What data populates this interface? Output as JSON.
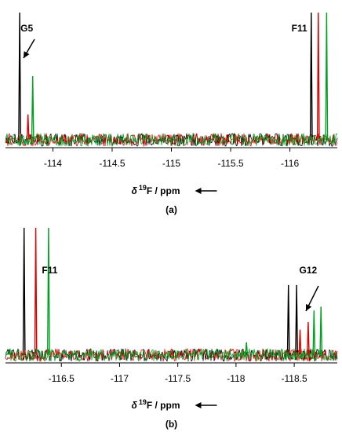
{
  "chart_data": [
    {
      "type": "line",
      "panel_label": "(a)",
      "xaxis": {
        "label_symbol": "δ",
        "label_sup": "19",
        "label_rest": "F / ppm",
        "reversed": true,
        "range": [
          -113.6,
          -116.4
        ],
        "ticks": [
          -114,
          -114.5,
          -115,
          -115.5,
          -116
        ],
        "tick_labels": [
          "-114",
          "-114.5",
          "-115",
          "-115.5",
          "-116"
        ]
      },
      "annotations": [
        {
          "text": "G5",
          "x": -113.78
        },
        {
          "text": "F11",
          "x": -116.08
        }
      ],
      "noise_amplitude": 0.05,
      "series": [
        {
          "color": "#000000",
          "peaks": [
            {
              "x": -113.72,
              "height": 1.0
            },
            {
              "x": -116.18,
              "height": 1.0
            }
          ]
        },
        {
          "color": "#dd0000",
          "peaks": [
            {
              "x": -113.79,
              "height": 0.2
            },
            {
              "x": -116.24,
              "height": 1.0
            }
          ]
        },
        {
          "color": "#00a020",
          "peaks": [
            {
              "x": -113.83,
              "height": 0.5
            },
            {
              "x": -116.31,
              "height": 1.0
            }
          ]
        }
      ]
    },
    {
      "type": "line",
      "panel_label": "(b)",
      "xaxis": {
        "label_symbol": "δ",
        "label_sup": "19",
        "label_rest": "F / ppm",
        "reversed": true,
        "range": [
          -116.02,
          -118.87
        ],
        "ticks": [
          -116.5,
          -117,
          -117.5,
          -118,
          -118.5
        ],
        "tick_labels": [
          "-116.5",
          "-117",
          "-117.5",
          "-118",
          "-118.5"
        ]
      },
      "annotations": [
        {
          "text": "F11",
          "x": -116.4
        },
        {
          "text": "G12",
          "x": -118.62
        }
      ],
      "noise_amplitude": 0.05,
      "series": [
        {
          "color": "#000000",
          "peaks": [
            {
              "x": -116.18,
              "height": 1.0
            },
            {
              "x": -118.45,
              "height": 0.55
            },
            {
              "x": -118.52,
              "height": 0.55
            }
          ]
        },
        {
          "color": "#dd0000",
          "peaks": [
            {
              "x": -116.28,
              "height": 1.0
            },
            {
              "x": -118.55,
              "height": 0.2
            },
            {
              "x": -118.62,
              "height": 0.26
            }
          ]
        },
        {
          "color": "#00a020",
          "peaks": [
            {
              "x": -116.39,
              "height": 1.0
            },
            {
              "x": -118.09,
              "height": 0.1
            },
            {
              "x": -118.67,
              "height": 0.35
            },
            {
              "x": -118.73,
              "height": 0.38
            }
          ]
        }
      ]
    }
  ]
}
